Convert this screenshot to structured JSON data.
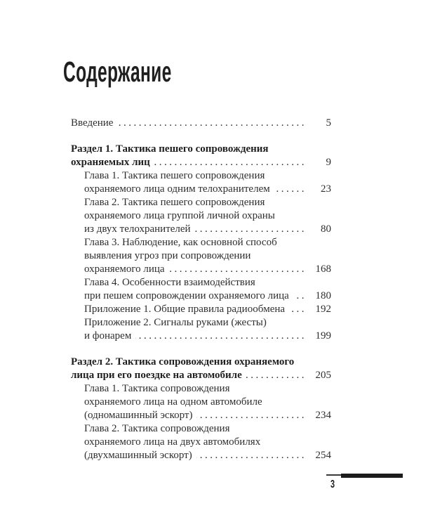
{
  "page": {
    "title": "Содержание",
    "footer_page_number": "3"
  },
  "colors": {
    "ink": "#2e2e2e",
    "heading_ink": "#1f1f1f",
    "bar": "#1c1c1c",
    "paper": "#ffffff"
  },
  "toc": {
    "entries": [
      {
        "style": "plain",
        "indent": 0,
        "lines": [
          "Введение"
        ],
        "page": "5"
      },
      {
        "style": "section",
        "indent": 0,
        "lines": [
          "Раздел 1. Тактика пешего сопровождения",
          "охраняемых лиц"
        ],
        "page": "9"
      },
      {
        "style": "chapter",
        "indent": 1,
        "lines": [
          "Глава 1. Тактика пешего сопровождения",
          "охраняемого лица одним телохранителем"
        ],
        "page": "23"
      },
      {
        "style": "chapter",
        "indent": 1,
        "lines": [
          "Глава 2. Тактика пешего сопровождения",
          "охраняемого лица группой личной охраны",
          "из двух телохранителей"
        ],
        "page": "80"
      },
      {
        "style": "chapter",
        "indent": 1,
        "lines": [
          "Глава 3. Наблюдение, как основной способ",
          "выявления угроз при сопровождении",
          "охраняемого лица"
        ],
        "page": "168"
      },
      {
        "style": "chapter",
        "indent": 1,
        "lines": [
          "Глава 4. Особенности взаимодействия",
          "при пешем сопровождении охраняемого лица"
        ],
        "page": "180"
      },
      {
        "style": "chapter",
        "indent": 1,
        "lines": [
          "Приложение 1. Общие правила радиообмена"
        ],
        "page": "192"
      },
      {
        "style": "chapter",
        "indent": 1,
        "lines": [
          "Приложение 2. Сигналы руками (жесты)",
          "и фонарем"
        ],
        "page": "199"
      },
      {
        "style": "section",
        "indent": 0,
        "lines": [
          "Раздел 2. Тактика сопровождения охраняемого",
          "лица при его поездке на автомобиле"
        ],
        "page": "205"
      },
      {
        "style": "chapter",
        "indent": 1,
        "lines": [
          "Глава 1. Тактика сопровождения",
          "охраняемого лица на одном автомобиле",
          "(одномашинный эскорт)"
        ],
        "page": "234"
      },
      {
        "style": "chapter",
        "indent": 1,
        "lines": [
          "Глава 2. Тактика сопровождения",
          "охраняемого лица на двух автомобилях",
          "(двухмашинный эскорт)"
        ],
        "page": "254"
      }
    ]
  }
}
